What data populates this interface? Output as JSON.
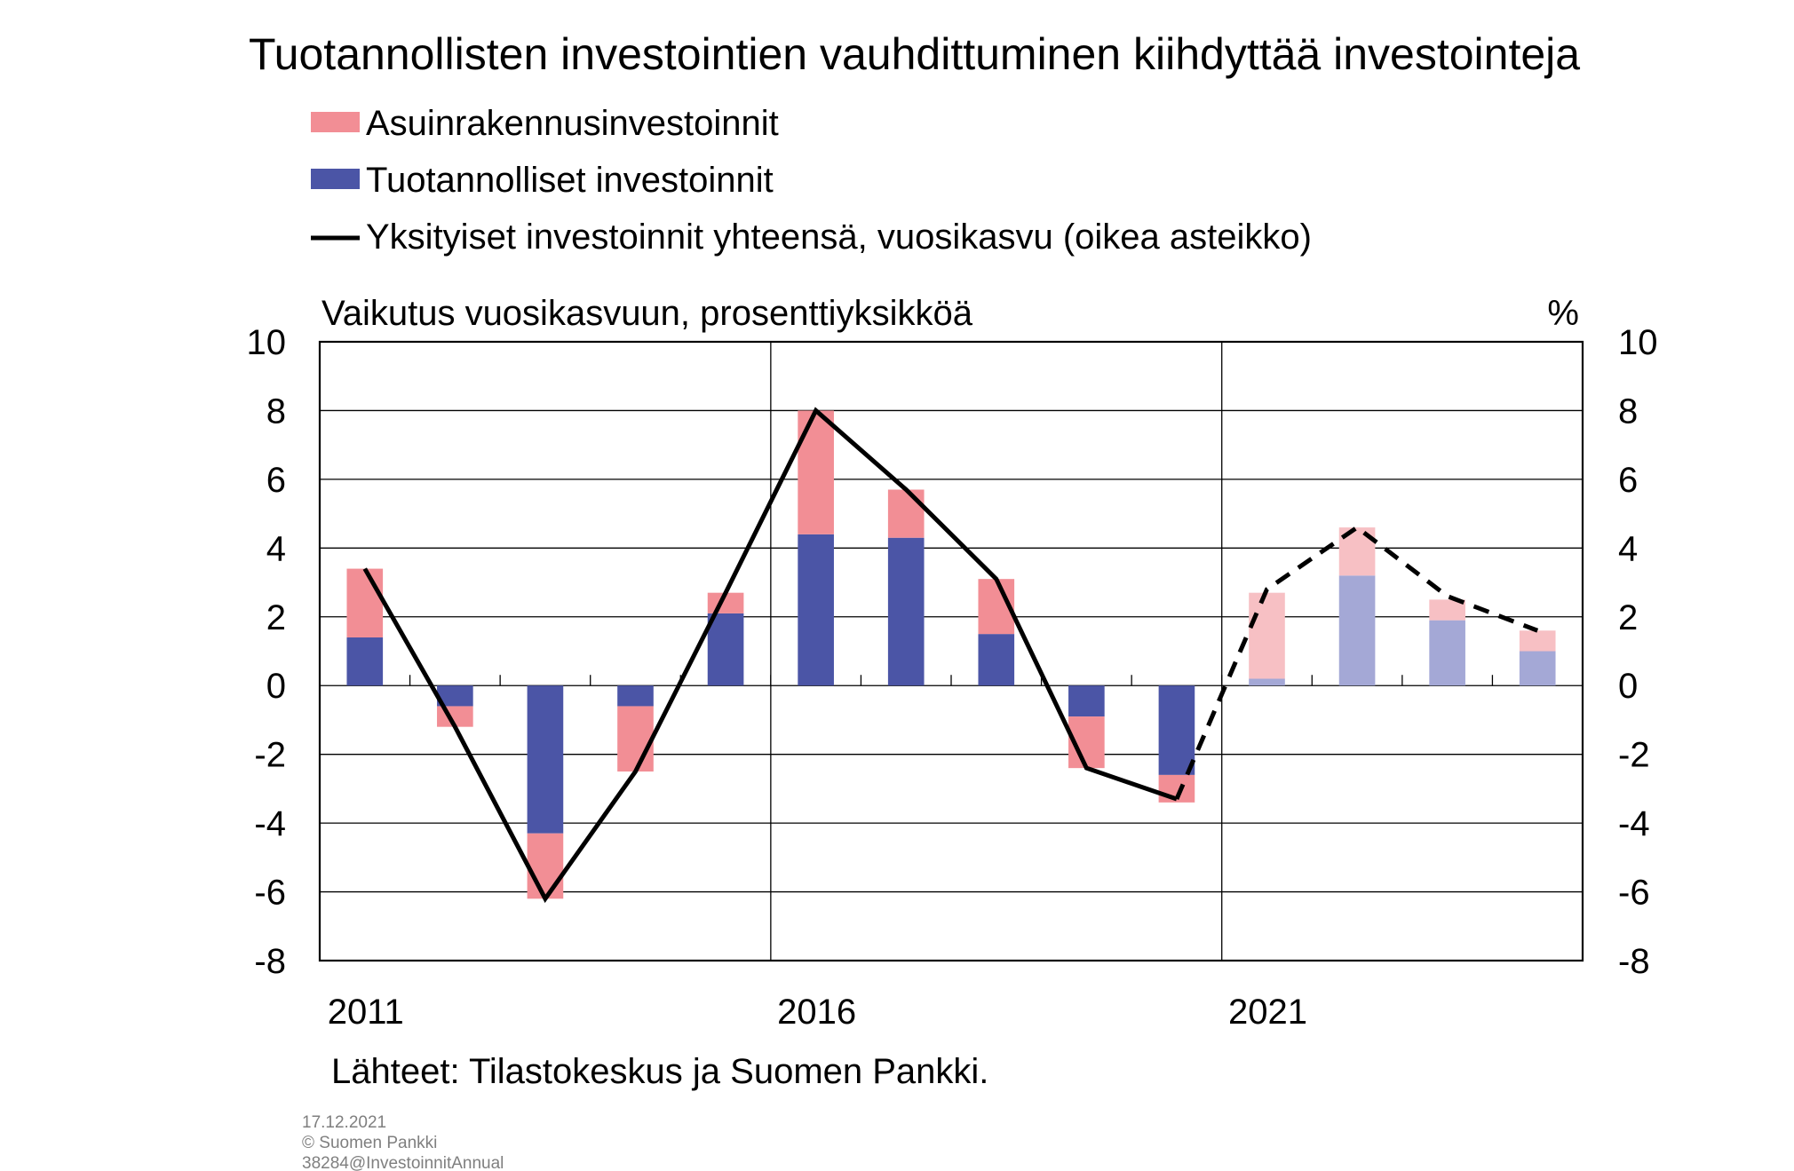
{
  "chart_data": {
    "type": "bar",
    "title": "Tuotannollisten investointien vauhdittuminen kiihdyttää investointeja",
    "ylabel_left": "Vaikutus vuosikasvuun, prosenttiyksikköä",
    "ylabel_right": "%",
    "ylim": [
      -8,
      10
    ],
    "yticks": [
      "10",
      "8",
      "6",
      "4",
      "2",
      "0",
      "-2",
      "-4",
      "-6",
      "-8"
    ],
    "x": [
      2011,
      2012,
      2013,
      2014,
      2015,
      2016,
      2017,
      2018,
      2019,
      2020,
      2021,
      2022,
      2023,
      2024
    ],
    "xtick_labels": [
      {
        "year": 2011,
        "label": "2011"
      },
      {
        "year": 2016,
        "label": "2016"
      },
      {
        "year": 2021,
        "label": "2021"
      }
    ],
    "forecast_from": 2021,
    "series": [
      {
        "name": "Asuinrakennusinvestoinnit",
        "kind": "bar",
        "color": "#f28e95",
        "forecast_color": "#f7c0c4",
        "values": [
          2.0,
          -0.6,
          -1.9,
          -1.9,
          0.6,
          3.6,
          1.4,
          1.6,
          -1.5,
          -0.8,
          2.5,
          1.4,
          0.6,
          0.6
        ]
      },
      {
        "name": "Tuotannolliset investoinnit",
        "kind": "bar",
        "color": "#4b55a6",
        "forecast_color": "#a4a8d6",
        "values": [
          1.4,
          -0.6,
          -4.3,
          -0.6,
          2.1,
          4.4,
          4.3,
          1.5,
          -0.9,
          -2.6,
          0.2,
          3.2,
          1.9,
          1.0
        ]
      },
      {
        "name": "Yksityiset investoinnit yhteensä, vuosikasvu (oikea asteikko)",
        "kind": "line",
        "color": "#000000",
        "values": [
          3.4,
          -1.2,
          -6.2,
          -2.5,
          2.7,
          8.0,
          5.7,
          3.1,
          -2.4,
          -3.3,
          2.8,
          4.6,
          2.6,
          1.6
        ]
      }
    ],
    "source": "Lähteet: Tilastokeskus ja Suomen Pankki.",
    "footer": [
      "17.12.2021",
      "© Suomen Pankki",
      "38284@InvestoinnitAnnual"
    ]
  }
}
